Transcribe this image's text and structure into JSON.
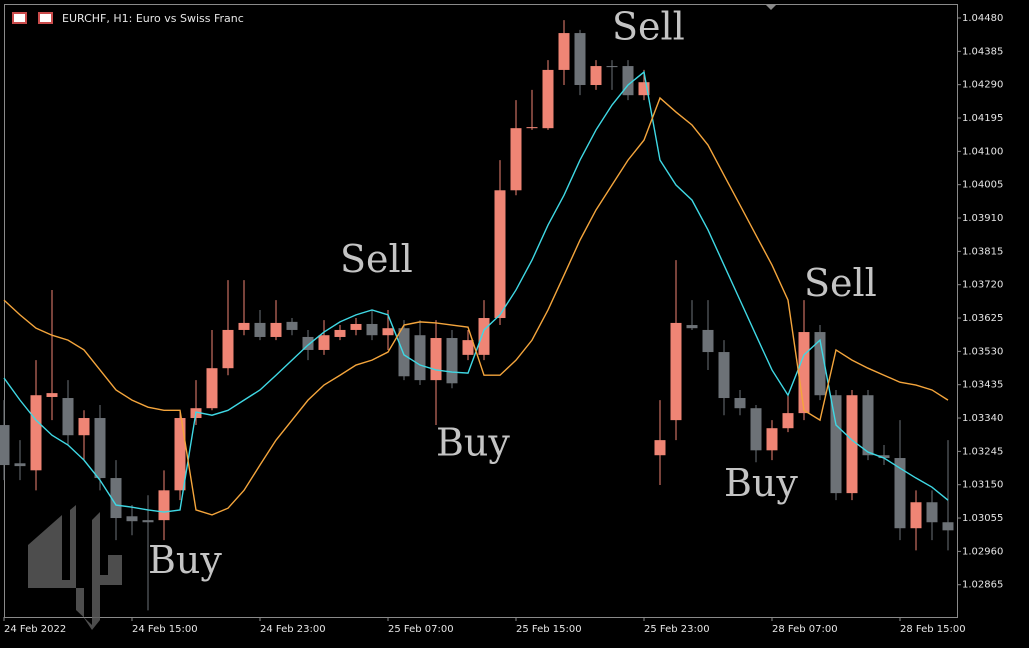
{
  "chart_data": {
    "type": "candlestick",
    "title": "EURCHF, H1:  Euro vs Swiss Franc",
    "categories": [
      "24 Feb 2022",
      null,
      null,
      null,
      null,
      null,
      null,
      null,
      "24 Feb 15:00",
      null,
      null,
      null,
      null,
      null,
      null,
      null,
      "24 Feb 23:00",
      null,
      null,
      null,
      null,
      null,
      null,
      null,
      "25 Feb 07:00",
      null,
      null,
      null,
      null,
      null,
      null,
      null,
      "25 Feb 15:00",
      null,
      null,
      null,
      null,
      null,
      null,
      null,
      "25 Feb 23:00",
      null,
      null,
      null,
      null,
      null,
      null,
      null,
      "28 Feb 07:00",
      null,
      null,
      null,
      null,
      null,
      null,
      null,
      "28 Feb 15:00",
      null,
      null,
      null
    ],
    "open": [
      1.0332,
      1.03211,
      1.03191,
      1.034,
      1.03397,
      1.03291,
      1.0334,
      1.03169,
      1.0306,
      1.03049,
      1.03049,
      1.03134,
      1.0334,
      1.03368,
      1.03482,
      1.03591,
      1.03611,
      1.03571,
      1.03614,
      1.03571,
      1.03534,
      1.03571,
      1.03591,
      1.03608,
      1.03576,
      1.03596,
      1.03576,
      1.03448,
      1.03568,
      1.0352,
      1.0352,
      1.03625,
      1.03989,
      1.04166,
      1.04166,
      1.04332,
      1.04437,
      1.04289,
      1.04343,
      1.04343,
      1.0426,
      1.03234,
      1.03334,
      1.03605,
      1.03591,
      1.03528,
      1.03397,
      1.03368,
      1.03248,
      1.03311,
      1.03354,
      1.03585,
      1.03405,
      1.03126,
      1.03405,
      1.03234,
      1.03226,
      1.03026,
      1.031,
      1.03043
    ],
    "high": [
      1.03391,
      1.03277,
      1.03505,
      1.03705,
      1.03448,
      1.03362,
      1.03377,
      1.0322,
      1.03092,
      1.0312,
      1.03191,
      1.03362,
      1.03448,
      1.03591,
      1.03733,
      1.03733,
      1.03648,
      1.03676,
      1.03625,
      1.03591,
      1.03619,
      1.03605,
      1.03625,
      1.03648,
      1.03648,
      1.03619,
      1.03619,
      1.03619,
      1.03591,
      1.03591,
      1.03676,
      1.04075,
      1.04246,
      1.04275,
      1.0436,
      1.04474,
      1.04446,
      1.0436,
      1.0436,
      1.0436,
      1.04332,
      1.03391,
      1.0379,
      1.03676,
      1.03676,
      1.03562,
      1.0342,
      1.03377,
      1.03334,
      1.03405,
      1.03676,
      1.03605,
      1.0342,
      1.0342,
      1.0342,
      1.03263,
      1.03334,
      1.03134,
      1.03134,
      1.03277
    ],
    "low": [
      1.03163,
      1.03163,
      1.03134,
      1.03334,
      1.03263,
      1.0322,
      1.03134,
      1.02992,
      1.03006,
      1.02792,
      1.02992,
      1.03106,
      1.0332,
      1.03362,
      1.03462,
      1.03576,
      1.03562,
      1.03562,
      1.03576,
      1.03505,
      1.0352,
      1.03562,
      1.03576,
      1.03562,
      1.03534,
      1.03448,
      1.03434,
      1.0332,
      1.03425,
      1.03505,
      1.03505,
      1.03605,
      1.03975,
      1.04161,
      1.04161,
      1.04289,
      1.0426,
      1.04275,
      1.04275,
      1.04246,
      1.04246,
      1.03149,
      1.03277,
      1.03591,
      1.03477,
      1.03348,
      1.03348,
      1.03214,
      1.0322,
      1.033,
      1.03334,
      1.03391,
      1.03106,
      1.03106,
      1.0322,
      1.03206,
      1.02992,
      1.02963,
      1.02992,
      1.02963
    ],
    "close": [
      1.03206,
      1.03203,
      1.03405,
      1.03411,
      1.03291,
      1.0334,
      1.03169,
      1.03055,
      1.03046,
      1.03043,
      1.03134,
      1.0334,
      1.03368,
      1.03482,
      1.03591,
      1.03611,
      1.03571,
      1.03611,
      1.03591,
      1.03534,
      1.03576,
      1.03591,
      1.03608,
      1.03576,
      1.03596,
      1.03459,
      1.03448,
      1.03568,
      1.03439,
      1.03562,
      1.03625,
      1.03989,
      1.04166,
      1.04169,
      1.04332,
      1.04437,
      1.04289,
      1.04343,
      1.0434,
      1.0426,
      1.04297,
      1.03277,
      1.03611,
      1.03596,
      1.03528,
      1.03397,
      1.03368,
      1.03248,
      1.03311,
      1.03354,
      1.03585,
      1.03405,
      1.03126,
      1.03405,
      1.03234,
      1.03226,
      1.03026,
      1.031,
      1.03043,
      1.0302
    ],
    "up_color": "#ef8575",
    "down_color": "#6d7277",
    "lines": [
      {
        "color": "#3fd8e4",
        "values": [
          1.03454,
          1.03391,
          1.03334,
          1.03291,
          1.03263,
          1.0322,
          1.03163,
          1.03092,
          1.03086,
          1.03078,
          1.03072,
          1.03078,
          1.03357,
          1.03348,
          1.03362,
          1.03391,
          1.0342,
          1.03462,
          1.03505,
          1.03548,
          1.03585,
          1.03614,
          1.03634,
          1.03648,
          1.03634,
          1.0352,
          1.03491,
          1.03477,
          1.03471,
          1.03468,
          1.03591,
          1.03634,
          1.03705,
          1.0379,
          1.0389,
          1.03975,
          1.04075,
          1.04161,
          1.04232,
          1.04289,
          1.04326,
          1.04075,
          1.04004,
          1.03961,
          1.03876,
          1.03776,
          1.03676,
          1.03576,
          1.03477,
          1.03405,
          1.0352,
          1.03562,
          1.0332,
          1.03277,
          1.03243,
          1.03226,
          1.03197,
          1.03169,
          1.03143,
          1.03106
        ]
      },
      {
        "color": "#f4a53c",
        "values": [
          1.03676,
          1.03634,
          1.03596,
          1.03576,
          1.03562,
          1.03534,
          1.03477,
          1.0342,
          1.03391,
          1.03371,
          1.03362,
          1.03362,
          1.03078,
          1.03064,
          1.03083,
          1.03134,
          1.03206,
          1.03277,
          1.03334,
          1.03391,
          1.03434,
          1.03462,
          1.03491,
          1.03505,
          1.03528,
          1.03605,
          1.03614,
          1.03611,
          1.03605,
          1.03599,
          1.03462,
          1.03462,
          1.03505,
          1.03562,
          1.03648,
          1.03747,
          1.03847,
          1.03933,
          1.04004,
          1.04075,
          1.04132,
          1.04252,
          1.04212,
          1.04175,
          1.04118,
          1.04032,
          1.03947,
          1.03861,
          1.03776,
          1.03676,
          1.03362,
          1.03334,
          1.03534,
          1.03505,
          1.03482,
          1.03462,
          1.03442,
          1.03434,
          1.0342,
          1.03391
        ]
      }
    ],
    "annotations": [
      {
        "text": "Sell",
        "x": 38,
        "y": 1.04446
      },
      {
        "text": "Sell",
        "x": 21,
        "y": 1.03783
      },
      {
        "text": "Sell",
        "x": 50,
        "y": 1.03715
      },
      {
        "text": "Buy",
        "x": 27,
        "y": 1.0326
      },
      {
        "text": "Buy",
        "x": 45,
        "y": 1.03145
      },
      {
        "text": "Buy",
        "x": 9,
        "y": 1.02925
      }
    ],
    "ylim": [
      1.02773,
      1.04517
    ],
    "yticks": [
      {
        "value": 1.0448,
        "label": "1.04480"
      },
      {
        "value": 1.04385,
        "label": "1.04385"
      },
      {
        "value": 1.0429,
        "label": "1.04290"
      },
      {
        "value": 1.04195,
        "label": "1.04195"
      },
      {
        "value": 1.041,
        "label": "1.04100"
      },
      {
        "value": 1.04005,
        "label": "1.04005"
      },
      {
        "value": 1.0391,
        "label": "1.03910"
      },
      {
        "value": 1.03815,
        "label": "1.03815"
      },
      {
        "value": 1.0372,
        "label": "1.03720"
      },
      {
        "value": 1.03625,
        "label": "1.03625"
      },
      {
        "value": 1.0353,
        "label": "1.03530"
      },
      {
        "value": 1.03435,
        "label": "1.03435"
      },
      {
        "value": 1.0334,
        "label": "1.03340"
      },
      {
        "value": 1.03245,
        "label": "1.03245"
      },
      {
        "value": 1.0315,
        "label": "1.03150"
      },
      {
        "value": 1.03055,
        "label": "1.03055"
      },
      {
        "value": 1.0296,
        "label": "1.02960"
      },
      {
        "value": 1.02865,
        "label": "1.02865"
      }
    ],
    "grid": false
  }
}
